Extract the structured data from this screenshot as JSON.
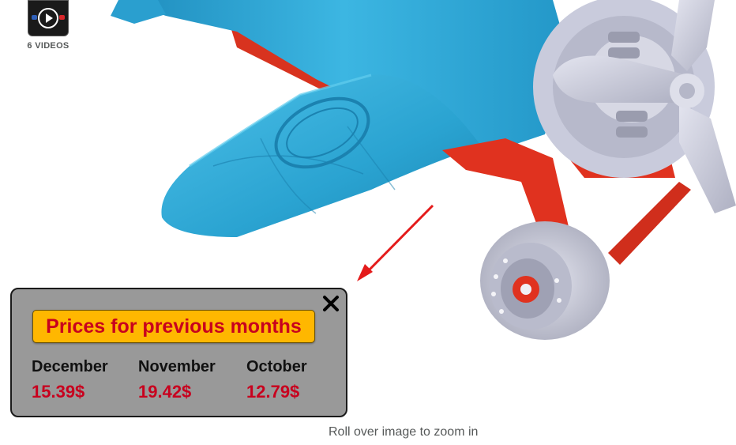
{
  "media": {
    "video_count_label": "6 VIDEOS",
    "image_subject": "toy airplane"
  },
  "price_popup": {
    "title": "Prices for previous months",
    "months": [
      {
        "name": "December",
        "price": "15.39$"
      },
      {
        "name": "November",
        "price": "19.42$"
      },
      {
        "name": "October",
        "price": "12.79$"
      }
    ],
    "close_icon": "close-icon"
  },
  "zoom_hint": "Roll over image to zoom in",
  "colors": {
    "popup_bg": "#999999",
    "title_bg": "#ffb700",
    "price_red": "#c8001e",
    "plane_blue": "#2aa3d1",
    "plane_red": "#e0321f",
    "propeller_grey": "#c9cbdc",
    "arrow_red": "#e41b1b"
  }
}
